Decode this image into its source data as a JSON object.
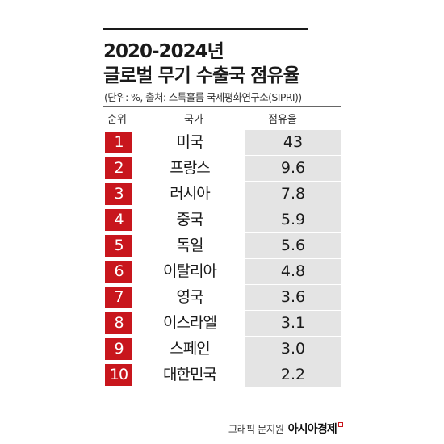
{
  "title": {
    "line1": "2020-2024년",
    "line2": "글로벌 무기 수출국 점유율"
  },
  "source_note": "(단위: %, 출처: 스톡홀름 국제평화연구소(SIPRI))",
  "table": {
    "headers": {
      "rank": "순위",
      "country": "국가",
      "share": "점유율"
    },
    "rows": [
      {
        "rank": "1",
        "country": "미국",
        "share": "43"
      },
      {
        "rank": "2",
        "country": "프랑스",
        "share": "9.6"
      },
      {
        "rank": "3",
        "country": "러시아",
        "share": "7.8"
      },
      {
        "rank": "4",
        "country": "중국",
        "share": "5.9"
      },
      {
        "rank": "5",
        "country": "독일",
        "share": "5.6"
      },
      {
        "rank": "6",
        "country": "이탈리아",
        "share": "4.8"
      },
      {
        "rank": "7",
        "country": "영국",
        "share": "3.6"
      },
      {
        "rank": "8",
        "country": "이스라엘",
        "share": "3.1"
      },
      {
        "rank": "9",
        "country": "스페인",
        "share": "3.0"
      },
      {
        "rank": "10",
        "country": "대한민국",
        "share": "2.2"
      }
    ]
  },
  "credit": {
    "label": "그래픽 문지원",
    "brand": "아시아경제"
  },
  "colors": {
    "rank_badge": "#c8161d",
    "share_cell": "#e4e4e4",
    "text": "#1a1a1a"
  }
}
